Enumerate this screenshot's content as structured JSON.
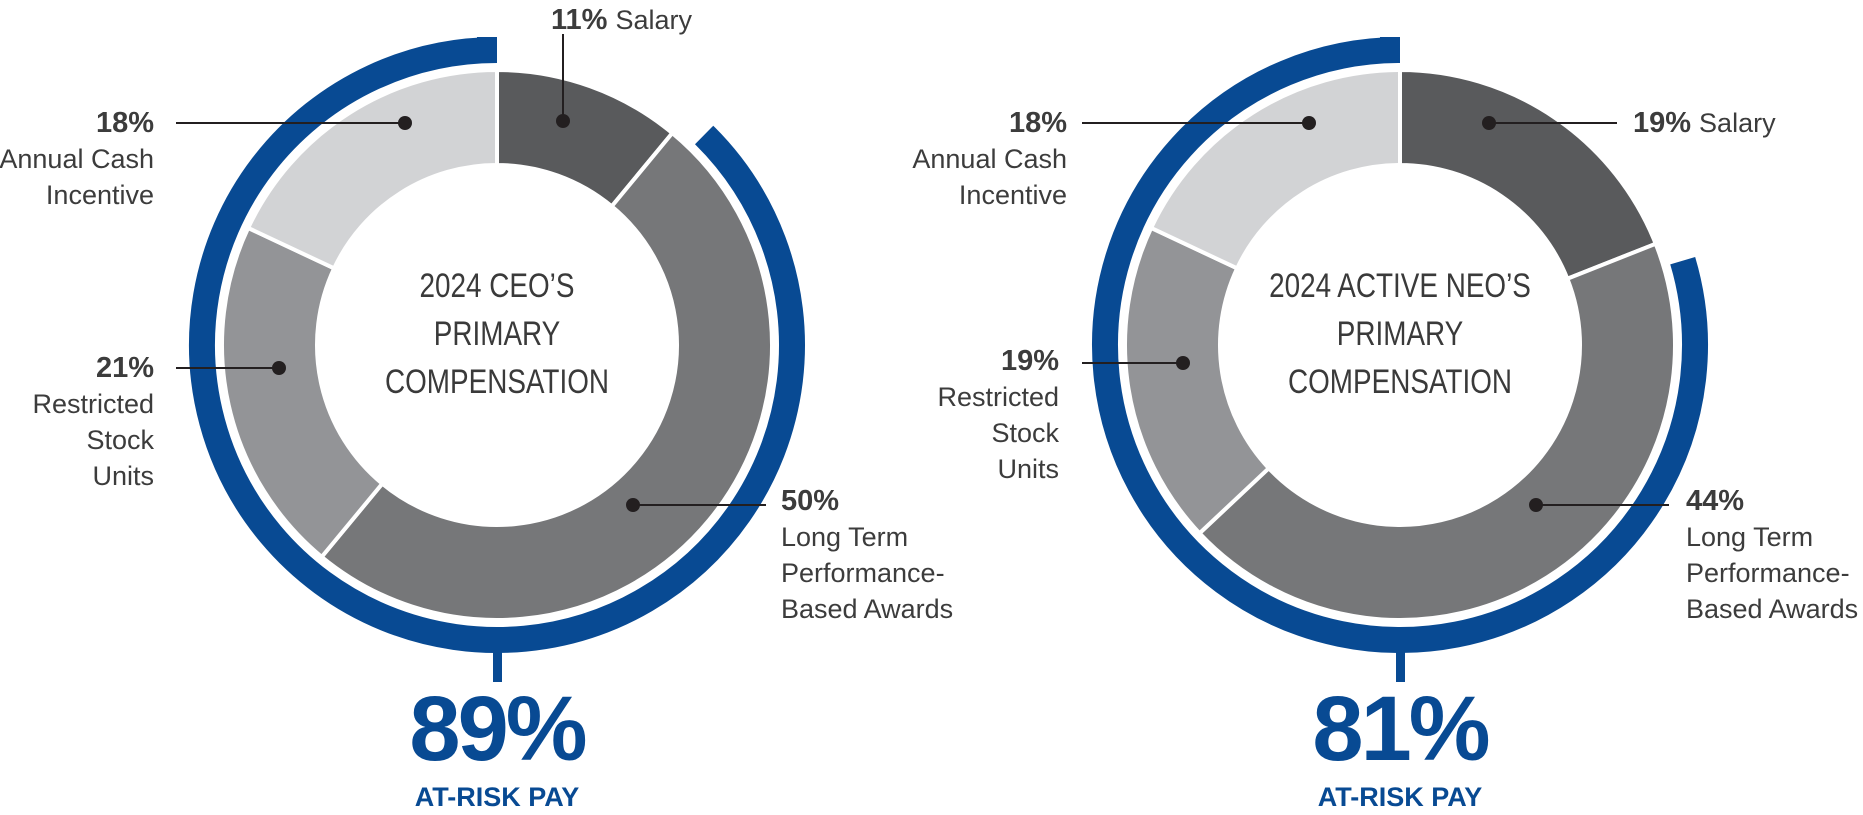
{
  "colors": {
    "at_risk_arc": "#084a93",
    "salary": "#595a5c",
    "long_term_performance": "#767779",
    "restricted_stock_units": "#939497",
    "annual_cash_incentive": "#d2d3d5",
    "separator": "#ffffff",
    "leader_line": "#231f20"
  },
  "chart_data": [
    {
      "type": "pie",
      "variant": "donut",
      "title": "2024 CEO'S PRIMARY COMPENSATION",
      "center_lines": [
        "2024 CEO’S",
        "PRIMARY",
        "COMPENSATION"
      ],
      "segments": [
        {
          "key": "salary",
          "name": "Salary",
          "value": 11,
          "value_label": "11%",
          "label_lines": [
            "Salary"
          ]
        },
        {
          "key": "long_term_performance",
          "name": "Long Term Performance-Based Awards",
          "value": 50,
          "value_label": "50%",
          "label_lines": [
            "Long Term",
            "Performance-",
            "Based Awards"
          ]
        },
        {
          "key": "restricted_stock_units",
          "name": "Restricted Stock Units",
          "value": 21,
          "value_label": "21%",
          "label_lines": [
            "Restricted",
            "Stock",
            "Units"
          ]
        },
        {
          "key": "annual_cash_incentive",
          "name": "Annual Cash Incentive",
          "value": 18,
          "value_label": "18%",
          "label_lines": [
            "Annual Cash",
            "Incentive"
          ]
        }
      ],
      "at_risk": {
        "value": 89,
        "value_label": "89%",
        "label": "AT-RISK PAY"
      }
    },
    {
      "type": "pie",
      "variant": "donut",
      "title": "2024 ACTIVE NEO'S PRIMARY COMPENSATION",
      "center_lines": [
        "2024 ACTIVE NEO’S",
        "PRIMARY",
        "COMPENSATION"
      ],
      "segments": [
        {
          "key": "salary",
          "name": "Salary",
          "value": 19,
          "value_label": "19%",
          "label_lines": [
            "Salary"
          ]
        },
        {
          "key": "long_term_performance",
          "name": "Long Term Performance-Based Awards",
          "value": 44,
          "value_label": "44%",
          "label_lines": [
            "Long Term",
            "Performance-",
            "Based Awards"
          ]
        },
        {
          "key": "restricted_stock_units",
          "name": "Restricted Stock Units",
          "value": 19,
          "value_label": "19%",
          "label_lines": [
            "Restricted",
            "Stock",
            "Units"
          ]
        },
        {
          "key": "annual_cash_incentive",
          "name": "Annual Cash Incentive",
          "value": 18,
          "value_label": "18%",
          "label_lines": [
            "Annual Cash",
            "Incentive"
          ]
        }
      ],
      "at_risk": {
        "value": 81,
        "value_label": "81%",
        "label": "AT-RISK PAY"
      }
    }
  ]
}
